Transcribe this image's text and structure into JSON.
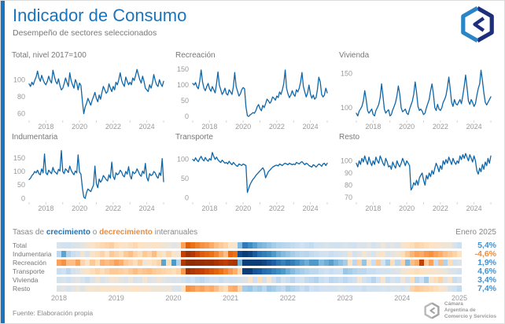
{
  "header": {
    "title": "Indicador de Consumo",
    "subtitle": "Desempeño de sectores seleccionados"
  },
  "heatmap_legend": {
    "prefix": "Tasas de ",
    "growth": "crecimiento",
    "conj": " o ",
    "decline": "decrecimiento",
    "suffix": " interanuales",
    "period": "Enero 2025"
  },
  "percent_colors": {
    "positive": "#4191cf",
    "negative": "#ee8c3a"
  },
  "page": {
    "accent_blue": "#1b74bc",
    "line_color": "#0f67a9"
  },
  "footer": {
    "source": "Fuente: Elaboración propia",
    "logo_lines": [
      "Cámara",
      "Argentina de",
      "Comercio y Servicios"
    ]
  },
  "chart_data": [
    {
      "type": "line",
      "title": "Total, nivel 2017=100",
      "x_range": [
        "2017-01",
        "2025-01"
      ],
      "x_ticks": [
        2018,
        2020,
        2022,
        2024
      ],
      "y_ticks": [
        60,
        80,
        100
      ],
      "ylim": [
        55,
        115
      ],
      "values": [
        95,
        92,
        97,
        94,
        99,
        103,
        110,
        102,
        98,
        105,
        100,
        96,
        94,
        98,
        104,
        99,
        96,
        111,
        104,
        98,
        95,
        101,
        93,
        88,
        90,
        95,
        102,
        97,
        92,
        108,
        99,
        94,
        90,
        100,
        96,
        88,
        96,
        93,
        75,
        60,
        68,
        72,
        78,
        74,
        70,
        76,
        80,
        85,
        78,
        74,
        82,
        77,
        85,
        92,
        88,
        84,
        86,
        95,
        90,
        86,
        92,
        88,
        97,
        94,
        100,
        108,
        99,
        95,
        92,
        103,
        98,
        94,
        97,
        94,
        102,
        99,
        105,
        112,
        106,
        100,
        96,
        104,
        98,
        90,
        88,
        86,
        94,
        90,
        96,
        106,
        99,
        94,
        92,
        100,
        95,
        92,
        98
      ]
    },
    {
      "type": "line",
      "title": "Recreación",
      "x_range": [
        "2017-01",
        "2025-01"
      ],
      "x_ticks": [
        2018,
        2020,
        2022,
        2024
      ],
      "y_ticks": [
        0,
        50,
        100,
        150
      ],
      "ylim": [
        -5,
        158
      ],
      "values": [
        105,
        100,
        108,
        95,
        88,
        112,
        148,
        110,
        90,
        82,
        95,
        105,
        88,
        80,
        95,
        85,
        75,
        105,
        142,
        100,
        85,
        70,
        78,
        90,
        72,
        68,
        85,
        78,
        70,
        95,
        140,
        95,
        80,
        65,
        72,
        85,
        92,
        88,
        30,
        2,
        0,
        5,
        8,
        12,
        10,
        18,
        30,
        38,
        25,
        18,
        35,
        28,
        40,
        55,
        50,
        42,
        48,
        62,
        58,
        52,
        65,
        60,
        78,
        70,
        85,
        105,
        148,
        90,
        72,
        60,
        68,
        82,
        70,
        64,
        85,
        78,
        90,
        110,
        140,
        95,
        78,
        62,
        75,
        100,
        72,
        58,
        68,
        55,
        60,
        85,
        125,
        110,
        70,
        62,
        68,
        90,
        75
      ]
    },
    {
      "type": "line",
      "title": "Vivienda",
      "x_range": [
        "2017-01",
        "2025-01"
      ],
      "x_ticks": [
        2018,
        2020,
        2022,
        2024
      ],
      "y_ticks": [
        100,
        150
      ],
      "ylim": [
        85,
        160
      ],
      "values": [
        92,
        88,
        95,
        98,
        102,
        110,
        125,
        112,
        96,
        92,
        95,
        98,
        90,
        88,
        96,
        100,
        105,
        115,
        135,
        118,
        98,
        92,
        95,
        97,
        88,
        90,
        97,
        102,
        108,
        118,
        132,
        120,
        100,
        94,
        96,
        98,
        92,
        90,
        98,
        104,
        110,
        120,
        138,
        122,
        102,
        96,
        98,
        95,
        90,
        92,
        100,
        106,
        112,
        125,
        135,
        120,
        100,
        96,
        105,
        98,
        96,
        100,
        108,
        112,
        118,
        130,
        145,
        128,
        108,
        102,
        112,
        106,
        104,
        108,
        112,
        106,
        118,
        132,
        148,
        130,
        110,
        105,
        112,
        108,
        102,
        106,
        118,
        128,
        135,
        155,
        140,
        122,
        108,
        104,
        108,
        112,
        116
      ]
    },
    {
      "type": "line",
      "title": "Indumentaria",
      "x_range": [
        "2017-01",
        "2025-01"
      ],
      "x_ticks": [
        2018,
        2020,
        2022,
        2024
      ],
      "y_ticks": [
        0,
        50,
        100,
        150
      ],
      "ylim": [
        -5,
        185
      ],
      "values": [
        70,
        75,
        85,
        90,
        100,
        95,
        105,
        92,
        88,
        110,
        95,
        165,
        95,
        88,
        105,
        98,
        92,
        115,
        100,
        96,
        90,
        108,
        102,
        178,
        100,
        92,
        110,
        104,
        96,
        120,
        105,
        95,
        88,
        102,
        95,
        162,
        98,
        90,
        40,
        5,
        0,
        22,
        35,
        30,
        25,
        38,
        50,
        120,
        55,
        40,
        72,
        60,
        68,
        85,
        78,
        70,
        65,
        88,
        75,
        135,
        82,
        70,
        95,
        88,
        92,
        105,
        98,
        85,
        80,
        100,
        90,
        118,
        85,
        72,
        100,
        92,
        96,
        110,
        100,
        88,
        82,
        102,
        92,
        130,
        78,
        65,
        92,
        85,
        88,
        100,
        95,
        82,
        75,
        95,
        85,
        148,
        62
      ]
    },
    {
      "type": "line",
      "title": "Transporte",
      "x_range": [
        "2017-01",
        "2025-01"
      ],
      "x_ticks": [
        2018,
        2020,
        2022,
        2024
      ],
      "y_ticks": [
        0,
        50,
        100
      ],
      "ylim": [
        -5,
        128
      ],
      "values": [
        100,
        96,
        104,
        98,
        94,
        102,
        108,
        100,
        96,
        105,
        99,
        95,
        102,
        98,
        118,
        108,
        100,
        106,
        99,
        95,
        92,
        98,
        94,
        90,
        92,
        88,
        95,
        90,
        86,
        92,
        88,
        84,
        82,
        88,
        86,
        84,
        88,
        86,
        84,
        14,
        25,
        35,
        42,
        48,
        52,
        58,
        62,
        66,
        70,
        74,
        78,
        72,
        52,
        60,
        68,
        72,
        76,
        80,
        82,
        84,
        85,
        83,
        88,
        86,
        84,
        88,
        90,
        88,
        86,
        90,
        88,
        86,
        88,
        86,
        92,
        90,
        88,
        92,
        94,
        90,
        86,
        90,
        88,
        84,
        82,
        80,
        86,
        84,
        80,
        84,
        88,
        86,
        82,
        88,
        90,
        84,
        90
      ]
    },
    {
      "type": "line",
      "title": "Resto",
      "x_range": [
        "2017-01",
        "2025-01"
      ],
      "x_ticks": [
        2018,
        2020,
        2022,
        2024
      ],
      "y_ticks": [
        70,
        80,
        90,
        100
      ],
      "ylim": [
        68,
        110
      ],
      "values": [
        98,
        95,
        100,
        97,
        102,
        99,
        104,
        100,
        97,
        103,
        99,
        96,
        100,
        97,
        103,
        100,
        98,
        104,
        101,
        98,
        96,
        102,
        99,
        95,
        96,
        93,
        99,
        96,
        94,
        100,
        97,
        95,
        98,
        102,
        99,
        96,
        100,
        98,
        96,
        76,
        78,
        82,
        80,
        84,
        80,
        86,
        88,
        90,
        84,
        80,
        88,
        85,
        90,
        87,
        92,
        89,
        94,
        98,
        95,
        91,
        96,
        93,
        100,
        97,
        101,
        98,
        103,
        100,
        97,
        102,
        99,
        97,
        100,
        98,
        104,
        101,
        105,
        102,
        106,
        103,
        100,
        105,
        102,
        99,
        104,
        100,
        92,
        89,
        94,
        91,
        97,
        93,
        99,
        96,
        102,
        98,
        104
      ]
    },
    {
      "type": "heatmap",
      "title": "Tasas de crecimiento o decrecimiento interanuales",
      "unit": "% interanual",
      "period": "Enero 2025",
      "x_ticks": [
        2018,
        2019,
        2020,
        2021,
        2022,
        2023,
        2024,
        2025
      ],
      "x_range": [
        "2018-01",
        "2025-01"
      ],
      "rows": [
        {
          "label": "Total",
          "latest_label": "5,4%",
          "latest_positive": true,
          "values": [
            3,
            4,
            5,
            3,
            2,
            1,
            -2,
            -4,
            -6,
            -7,
            -8,
            -9,
            -6,
            -5,
            -4,
            -6,
            -7,
            -5,
            -4,
            -3,
            -5,
            -4,
            -2,
            -1,
            1,
            0,
            -18,
            -38,
            -30,
            -26,
            -22,
            -20,
            -16,
            -12,
            -10,
            -8,
            -5,
            -3,
            18,
            42,
            32,
            26,
            20,
            18,
            15,
            12,
            10,
            9,
            8,
            7,
            6,
            5,
            6,
            7,
            5,
            4,
            3,
            4,
            5,
            4,
            3,
            4,
            5,
            2,
            3,
            1,
            4,
            2,
            -1,
            2,
            1,
            2,
            -3,
            -5,
            -6,
            -8,
            -7,
            -6,
            -5,
            -4,
            -3,
            -2,
            -1,
            3,
            5.4
          ]
        },
        {
          "label": "Indumentaria",
          "latest_label": "-4,6%",
          "latest_positive": false,
          "values": [
            8,
            25,
            10,
            6,
            4,
            -2,
            3,
            -4,
            -6,
            -8,
            -5,
            -10,
            -8,
            -6,
            -10,
            -12,
            -8,
            -6,
            -10,
            -8,
            -12,
            -6,
            -4,
            -8,
            -4,
            -2,
            -55,
            -85,
            -70,
            -50,
            -40,
            -35,
            -30,
            -25,
            -18,
            -12,
            -35,
            -30,
            80,
            150,
            90,
            60,
            45,
            40,
            35,
            28,
            22,
            18,
            15,
            12,
            10,
            8,
            9,
            7,
            6,
            5,
            4,
            6,
            5,
            4,
            3,
            -2,
            4,
            2,
            -3,
            1,
            3,
            -2,
            -4,
            2,
            1,
            -2,
            -6,
            -10,
            -14,
            -18,
            -16,
            -20,
            -22,
            -18,
            -15,
            -12,
            -10,
            -8,
            -4.6
          ]
        },
        {
          "label": "Recreación",
          "latest_label": "1,9%",
          "latest_positive": true,
          "values": [
            -18,
            -22,
            -12,
            -12,
            -18,
            -8,
            -4,
            -10,
            -6,
            -14,
            -12,
            -14,
            -18,
            -15,
            -10,
            -8,
            -6,
            -10,
            -1,
            -5,
            -6,
            -8,
            25,
            -6,
            28,
            10,
            -70,
            -98,
            -99,
            -95,
            -94,
            -88,
            -88,
            -78,
            -68,
            -58,
            -72,
            -78,
            20,
            250,
            180,
            150,
            120,
            90,
            70,
            55,
            45,
            38,
            45,
            40,
            32,
            26,
            22,
            28,
            28,
            18,
            22,
            26,
            20,
            16,
            12,
            -5,
            8,
            -8,
            15,
            -4,
            6,
            -10,
            4,
            12,
            -6,
            8,
            -8,
            18,
            -12,
            -15,
            -55,
            -10,
            -18,
            6,
            -12,
            10,
            -6,
            4,
            1.9
          ]
        },
        {
          "label": "Transporte",
          "latest_label": "4,6%",
          "latest_positive": true,
          "values": [
            6,
            5,
            8,
            4,
            2,
            -2,
            -4,
            -6,
            -8,
            -6,
            -8,
            -10,
            -10,
            -9,
            -8,
            -10,
            -12,
            -10,
            -11,
            -12,
            -10,
            -9,
            -8,
            -7,
            -6,
            -8,
            -20,
            -85,
            -72,
            -62,
            -55,
            -48,
            -42,
            -36,
            -30,
            -25,
            -20,
            -15,
            -8,
            180,
            110,
            70,
            60,
            48,
            45,
            38,
            32,
            28,
            22,
            18,
            14,
            12,
            10,
            8,
            8,
            6,
            5,
            6,
            5,
            4,
            14,
            12,
            10,
            8,
            8,
            6,
            6,
            5,
            4,
            4,
            3,
            2,
            -2,
            -4,
            -5,
            -6,
            -5,
            -4,
            -4,
            -3,
            -2,
            -1,
            2,
            3,
            4.6
          ]
        },
        {
          "label": "Vivienda",
          "latest_label": "3,4%",
          "latest_positive": true,
          "values": [
            4,
            3,
            5,
            2,
            1,
            3,
            6,
            2,
            -2,
            3,
            1,
            -3,
            -2,
            1,
            2,
            -1,
            3,
            2,
            -3,
            2,
            1,
            -2,
            1,
            2,
            3,
            2,
            4,
            6,
            5,
            7,
            8,
            6,
            5,
            4,
            6,
            4,
            5,
            4,
            3,
            2,
            -4,
            5,
            -6,
            4,
            -3,
            5,
            8,
            4,
            6,
            8,
            5,
            4,
            7,
            8,
            10,
            6,
            5,
            8,
            7,
            6,
            8,
            6,
            5,
            -3,
            4,
            6,
            9,
            5,
            -4,
            6,
            3,
            5,
            -2,
            4,
            -6,
            8,
            5,
            12,
            -4,
            -6,
            -8,
            2,
            -4,
            6,
            3.4
          ]
        },
        {
          "label": "Resto",
          "latest_label": "7,4%",
          "latest_positive": true,
          "values": [
            2,
            1,
            3,
            1,
            -1,
            2,
            -2,
            -3,
            -2,
            -4,
            -3,
            -4,
            -4,
            -3,
            -2,
            -4,
            -5,
            -3,
            -4,
            -3,
            -1,
            -2,
            -1,
            -2,
            2,
            3,
            -4,
            -22,
            -20,
            -16,
            -18,
            -14,
            -16,
            -12,
            -8,
            -6,
            -14,
            -16,
            -8,
            12,
            14,
            10,
            12,
            8,
            14,
            12,
            9,
            7,
            12,
            10,
            8,
            6,
            8,
            5,
            6,
            5,
            4,
            5,
            4,
            3,
            4,
            5,
            5,
            4,
            6,
            4,
            5,
            4,
            3,
            4,
            3,
            3,
            4,
            2,
            -8,
            -10,
            -9,
            -8,
            -7,
            -6,
            -4,
            -2,
            3,
            5,
            7.4
          ]
        }
      ]
    }
  ]
}
